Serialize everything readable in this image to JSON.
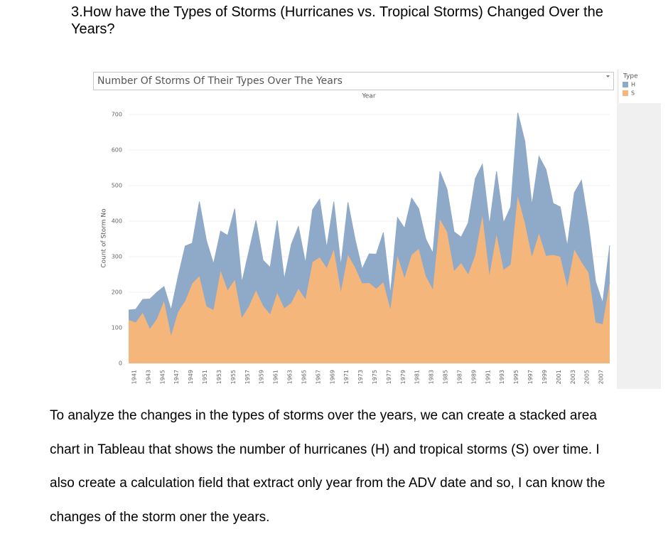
{
  "heading": "3.How have the Types of Storms (Hurricanes vs. Tropical Storms) Changed Over the Years?",
  "chart_data": {
    "type": "area",
    "stacked": true,
    "title": "Number Of Storms Of Their Types Over The Years",
    "x_label": "Year",
    "y_label": "Count of Storm No",
    "legend_title": "Type",
    "x": [
      1941,
      1942,
      1943,
      1944,
      1945,
      1946,
      1947,
      1948,
      1949,
      1950,
      1951,
      1952,
      1953,
      1954,
      1955,
      1956,
      1957,
      1958,
      1959,
      1960,
      1961,
      1962,
      1963,
      1964,
      1965,
      1966,
      1967,
      1968,
      1969,
      1970,
      1971,
      1972,
      1973,
      1974,
      1975,
      1976,
      1977,
      1978,
      1979,
      1980,
      1981,
      1982,
      1983,
      1984,
      1985,
      1986,
      1987,
      1988,
      1989,
      1990,
      1991,
      1992,
      1993,
      1994,
      1995,
      1996,
      1997,
      1998,
      1999,
      2000,
      2001,
      2002,
      2003,
      2004,
      2005,
      2006,
      2007,
      2008,
      2009
    ],
    "series": [
      {
        "name": "H",
        "color": "#8fa9c8",
        "values": [
          28,
          37,
          38,
          84,
          75,
          41,
          72,
          100,
          155,
          113,
          210,
          185,
          130,
          112,
          155,
          200,
          100,
          155,
          197,
          128,
          132,
          204,
          82,
          165,
          175,
          102,
          147,
          164,
          57,
          135,
          73,
          148,
          80,
          40,
          82,
          97,
          140,
          43,
          108,
          140,
          160,
          113,
          105,
          102,
          135,
          120,
          110,
          73,
          145,
          215,
          145,
          142,
          178,
          132,
          162,
          235,
          230,
          145,
          217,
          243,
          145,
          140,
          115,
          160,
          230,
          135,
          115,
          60,
          104
        ]
      },
      {
        "name": "S",
        "color": "#f5b67b",
        "values": [
          122,
          115,
          142,
          97,
          125,
          175,
          78,
          145,
          175,
          225,
          245,
          160,
          150,
          260,
          205,
          235,
          128,
          160,
          205,
          162,
          138,
          198,
          155,
          170,
          210,
          180,
          285,
          298,
          268,
          320,
          202,
          305,
          270,
          225,
          226,
          210,
          228,
          152,
          302,
          240,
          305,
          322,
          245,
          208,
          405,
          370,
          260,
          282,
          250,
          305,
          415,
          248,
          362,
          263,
          278,
          470,
          395,
          300,
          365,
          302,
          305,
          300,
          215,
          320,
          285,
          255,
          115,
          110,
          228
        ]
      }
    ],
    "xlim": [
      1941,
      2009
    ],
    "xticks": [
      1941,
      1943,
      1945,
      1947,
      1949,
      1951,
      1953,
      1955,
      1957,
      1959,
      1961,
      1963,
      1965,
      1967,
      1969,
      1971,
      1973,
      1975,
      1977,
      1979,
      1981,
      1983,
      1985,
      1987,
      1989,
      1991,
      1993,
      1995,
      1997,
      1999,
      2001,
      2003,
      2005,
      2007
    ],
    "ylim": [
      0,
      700
    ],
    "yticks": [
      0,
      100,
      200,
      300,
      400,
      500,
      600,
      700
    ],
    "grid": true
  },
  "paragraph": "To analyze the changes in the types of storms over the years, we can create a stacked area chart in Tableau that shows the number of hurricanes (H) and tropical storms (S) over time. I also create a calculation field that extract only year from the ADV date and so, I can know the changes of the storm oner the years."
}
